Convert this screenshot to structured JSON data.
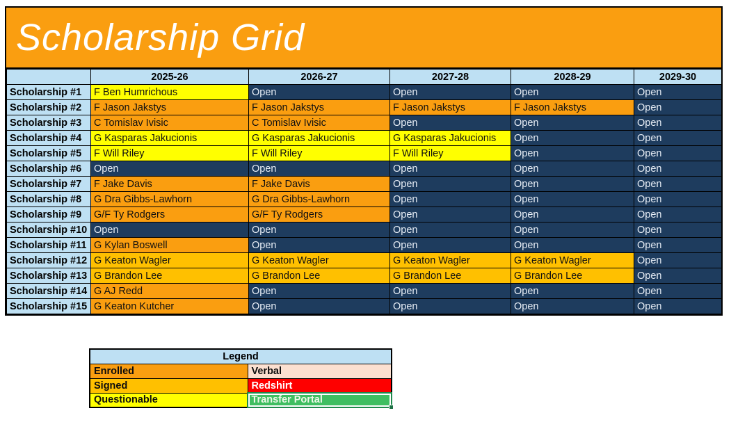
{
  "title": "Scholarship Grid",
  "columns": [
    "2025-26",
    "2026-27",
    "2027-28",
    "2028-29",
    "2029-30"
  ],
  "rows": [
    {
      "label": "Scholarship #1",
      "cells": [
        {
          "text": "F Ben Humrichous",
          "status": "questionable"
        },
        {
          "text": "Open",
          "status": "open"
        },
        {
          "text": "Open",
          "status": "open"
        },
        {
          "text": "Open",
          "status": "open"
        },
        {
          "text": "Open",
          "status": "open"
        }
      ]
    },
    {
      "label": "Scholarship #2",
      "cells": [
        {
          "text": "F Jason Jakstys",
          "status": "enrolled"
        },
        {
          "text": "F Jason Jakstys",
          "status": "enrolled"
        },
        {
          "text": "F Jason Jakstys",
          "status": "enrolled"
        },
        {
          "text": "F Jason Jakstys",
          "status": "enrolled"
        },
        {
          "text": "Open",
          "status": "open"
        }
      ]
    },
    {
      "label": "Scholarship #3",
      "cells": [
        {
          "text": "C Tomislav Ivisic",
          "status": "enrolled"
        },
        {
          "text": "C Tomislav Ivisic",
          "status": "enrolled"
        },
        {
          "text": "Open",
          "status": "open"
        },
        {
          "text": "Open",
          "status": "open"
        },
        {
          "text": "Open",
          "status": "open"
        }
      ]
    },
    {
      "label": "Scholarship #4",
      "cells": [
        {
          "text": "G Kasparas Jakucionis",
          "status": "questionable"
        },
        {
          "text": "G Kasparas Jakucionis",
          "status": "questionable"
        },
        {
          "text": "G Kasparas Jakucionis",
          "status": "questionable"
        },
        {
          "text": "Open",
          "status": "open"
        },
        {
          "text": "Open",
          "status": "open"
        }
      ]
    },
    {
      "label": "Scholarship #5",
      "cells": [
        {
          "text": "F Will Riley",
          "status": "questionable"
        },
        {
          "text": "F Will Riley",
          "status": "questionable"
        },
        {
          "text": "F Will Riley",
          "status": "questionable"
        },
        {
          "text": "Open",
          "status": "open"
        },
        {
          "text": "Open",
          "status": "open"
        }
      ]
    },
    {
      "label": "Scholarship #6",
      "cells": [
        {
          "text": "Open",
          "status": "open"
        },
        {
          "text": "Open",
          "status": "open"
        },
        {
          "text": "Open",
          "status": "open"
        },
        {
          "text": "Open",
          "status": "open"
        },
        {
          "text": "Open",
          "status": "open"
        }
      ]
    },
    {
      "label": "Scholarship #7",
      "cells": [
        {
          "text": "F Jake Davis",
          "status": "enrolled"
        },
        {
          "text": "F Jake Davis",
          "status": "enrolled"
        },
        {
          "text": "Open",
          "status": "open"
        },
        {
          "text": "Open",
          "status": "open"
        },
        {
          "text": "Open",
          "status": "open"
        }
      ]
    },
    {
      "label": "Scholarship #8",
      "cells": [
        {
          "text": "G Dra Gibbs-Lawhorn",
          "status": "enrolled"
        },
        {
          "text": "G Dra Gibbs-Lawhorn",
          "status": "enrolled"
        },
        {
          "text": "Open",
          "status": "open"
        },
        {
          "text": "Open",
          "status": "open"
        },
        {
          "text": "Open",
          "status": "open"
        }
      ]
    },
    {
      "label": "Scholarship #9",
      "cells": [
        {
          "text": "G/F Ty Rodgers",
          "status": "enrolled"
        },
        {
          "text": "G/F Ty Rodgers",
          "status": "enrolled"
        },
        {
          "text": "Open",
          "status": "open"
        },
        {
          "text": "Open",
          "status": "open"
        },
        {
          "text": "Open",
          "status": "open"
        }
      ]
    },
    {
      "label": "Scholarship #10",
      "cells": [
        {
          "text": "Open",
          "status": "open"
        },
        {
          "text": "Open",
          "status": "open"
        },
        {
          "text": "Open",
          "status": "open"
        },
        {
          "text": "Open",
          "status": "open"
        },
        {
          "text": "Open",
          "status": "open"
        }
      ]
    },
    {
      "label": "Scholarship #11",
      "cells": [
        {
          "text": "G Kylan Boswell",
          "status": "enrolled"
        },
        {
          "text": "Open",
          "status": "open"
        },
        {
          "text": "Open",
          "status": "open"
        },
        {
          "text": "Open",
          "status": "open"
        },
        {
          "text": "Open",
          "status": "open"
        }
      ]
    },
    {
      "label": "Scholarship #12",
      "cells": [
        {
          "text": "G Keaton Wagler",
          "status": "signed"
        },
        {
          "text": "G Keaton Wagler",
          "status": "signed"
        },
        {
          "text": "G Keaton Wagler",
          "status": "signed"
        },
        {
          "text": "G Keaton Wagler",
          "status": "signed"
        },
        {
          "text": "Open",
          "status": "open"
        }
      ]
    },
    {
      "label": "Scholarship #13",
      "cells": [
        {
          "text": "G Brandon Lee",
          "status": "signed"
        },
        {
          "text": "G Brandon Lee",
          "status": "signed"
        },
        {
          "text": "G Brandon Lee",
          "status": "signed"
        },
        {
          "text": "G Brandon Lee",
          "status": "signed"
        },
        {
          "text": "Open",
          "status": "open"
        }
      ]
    },
    {
      "label": "Scholarship #14",
      "cells": [
        {
          "text": "G AJ Redd",
          "status": "enrolled"
        },
        {
          "text": "Open",
          "status": "open"
        },
        {
          "text": "Open",
          "status": "open"
        },
        {
          "text": "Open",
          "status": "open"
        },
        {
          "text": "Open",
          "status": "open"
        }
      ]
    },
    {
      "label": "Scholarship #15",
      "cells": [
        {
          "text": "G Keaton Kutcher",
          "status": "enrolled"
        },
        {
          "text": "Open",
          "status": "open"
        },
        {
          "text": "Open",
          "status": "open"
        },
        {
          "text": "Open",
          "status": "open"
        },
        {
          "text": "Open",
          "status": "open"
        }
      ]
    }
  ],
  "legend": {
    "title": "Legend",
    "items": [
      {
        "label": "Enrolled",
        "status": "enrolled",
        "selected": false
      },
      {
        "label": "Verbal",
        "status": "verbal",
        "selected": false
      },
      {
        "label": "Signed",
        "status": "signed",
        "selected": false
      },
      {
        "label": "Redshirt",
        "status": "redshirt",
        "selected": false
      },
      {
        "label": "Questionable",
        "status": "questionable",
        "selected": false
      },
      {
        "label": "Transfer Portal",
        "status": "transfer",
        "selected": true
      }
    ]
  },
  "colors": {
    "banner_orange": "#FA9E10",
    "header_blue": "#BEE0F3",
    "open_navy": "#1E3C5E",
    "enrolled_orange": "#FA9E10",
    "signed_gold": "#FFC000",
    "questionable_yellow": "#FFFF00",
    "verbal_pink": "#FCE0D0",
    "redshirt_red": "#FE0000",
    "transfer_green": "#3FBE61",
    "selection_border_green": "#1E8A4C"
  }
}
